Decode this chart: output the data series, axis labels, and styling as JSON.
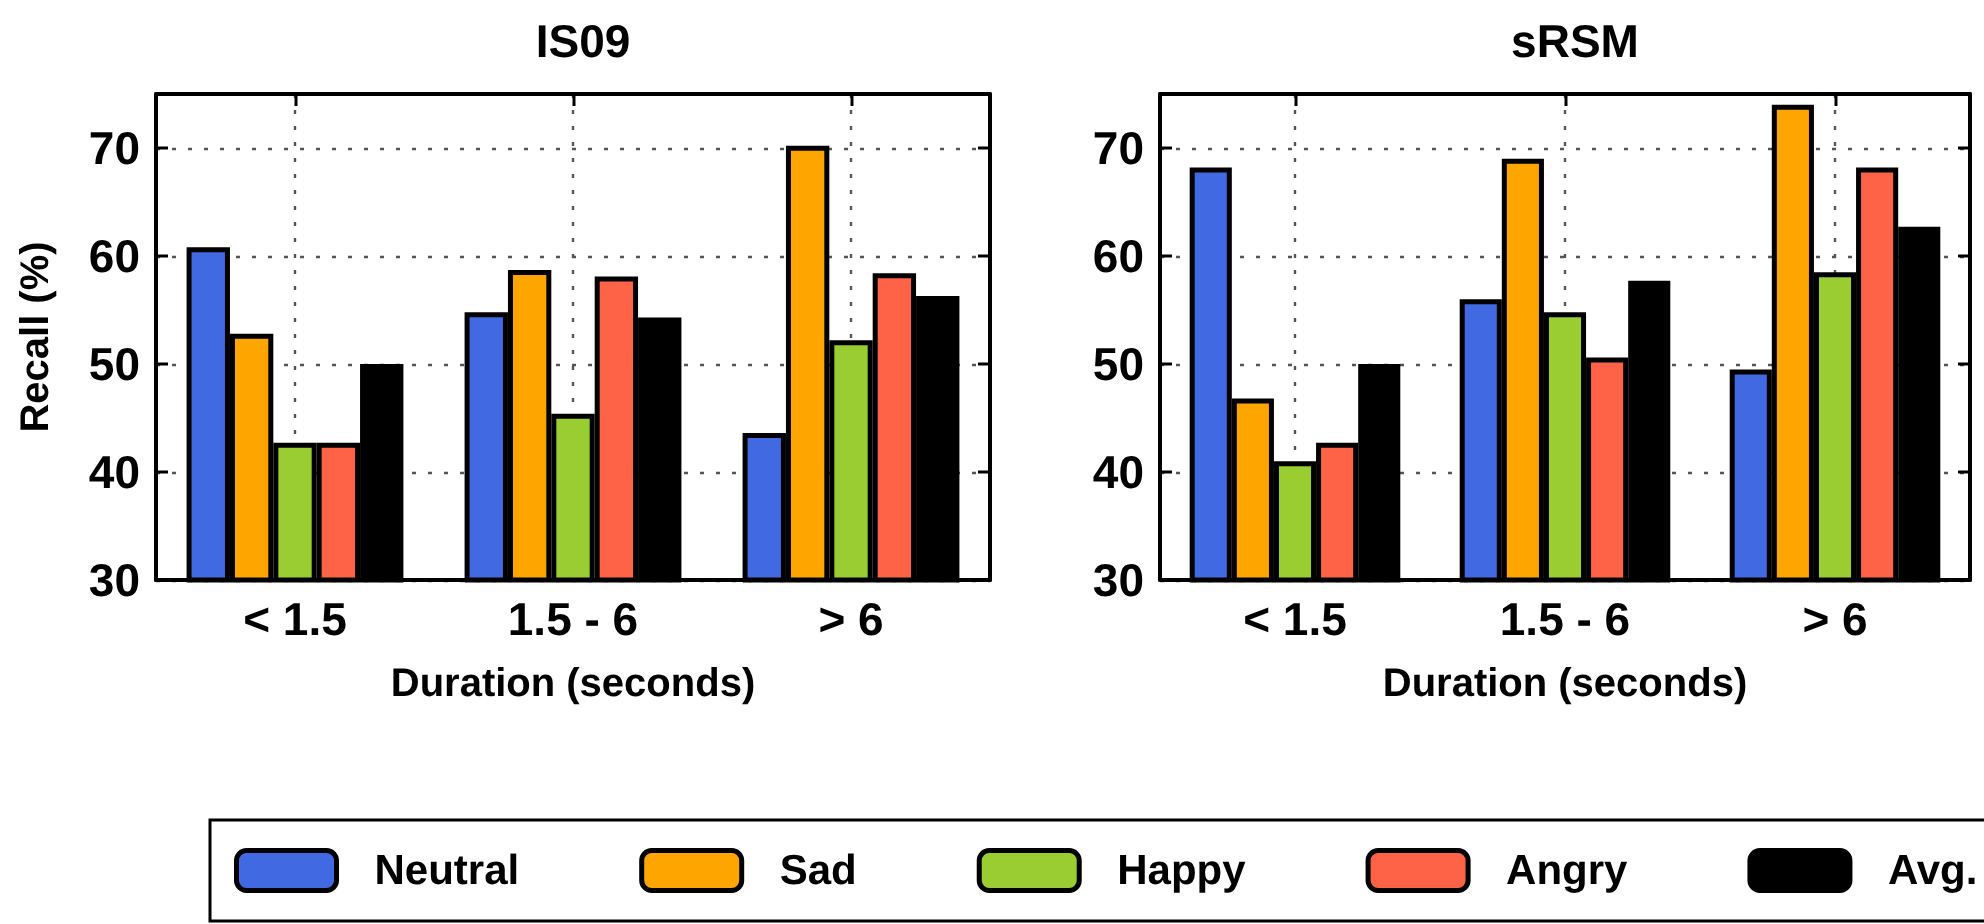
{
  "chart_data": [
    {
      "type": "bar",
      "title": "IS09",
      "xlabel": "Duration (seconds)",
      "ylabel": "Recall (%)",
      "categories": [
        "< 1.5",
        "1.5 - 6",
        "> 6"
      ],
      "series": [
        {
          "color": "#4169e1",
          "values": [
            60.8,
            54.8,
            43.6
          ]
        },
        {
          "color": "#ffa500",
          "values": [
            52.8,
            58.7,
            70.2
          ]
        },
        {
          "color": "#9acd32",
          "values": [
            42.7,
            45.4,
            52.2
          ]
        },
        {
          "color": "#ff6347",
          "values": [
            42.7,
            58.1,
            58.4
          ]
        },
        {
          "color": "#000000",
          "values": [
            50,
            54.3,
            56.3
          ]
        }
      ],
      "ylim": [
        30,
        75
      ],
      "yticks": [
        30,
        40,
        50,
        60,
        70
      ],
      "grid": true
    },
    {
      "type": "bar",
      "title": "sRSM",
      "xlabel": "Duration (seconds)",
      "categories": [
        "< 1.5",
        "1.5 - 6",
        "> 6"
      ],
      "series": [
        {
          "name": "Neutral",
          "color": "#4169e1",
          "values": [
            68.2,
            56,
            49.5
          ]
        },
        {
          "name": "Sad",
          "color": "#ffa500",
          "values": [
            46.8,
            69,
            74
          ]
        },
        {
          "name": "Happy",
          "color": "#9acd32",
          "values": [
            41,
            54.8,
            58.5
          ]
        },
        {
          "name": "Angry",
          "color": "#ff6347",
          "values": [
            42.7,
            50.6,
            68.2
          ]
        },
        {
          "name": "Avg.",
          "color": "#000000",
          "values": [
            50,
            57.7,
            62.7
          ]
        }
      ],
      "ylim": [
        30,
        75
      ],
      "yticks": [
        30,
        40,
        50,
        60,
        70
      ],
      "grid": true,
      "legend": "bottom"
    }
  ]
}
